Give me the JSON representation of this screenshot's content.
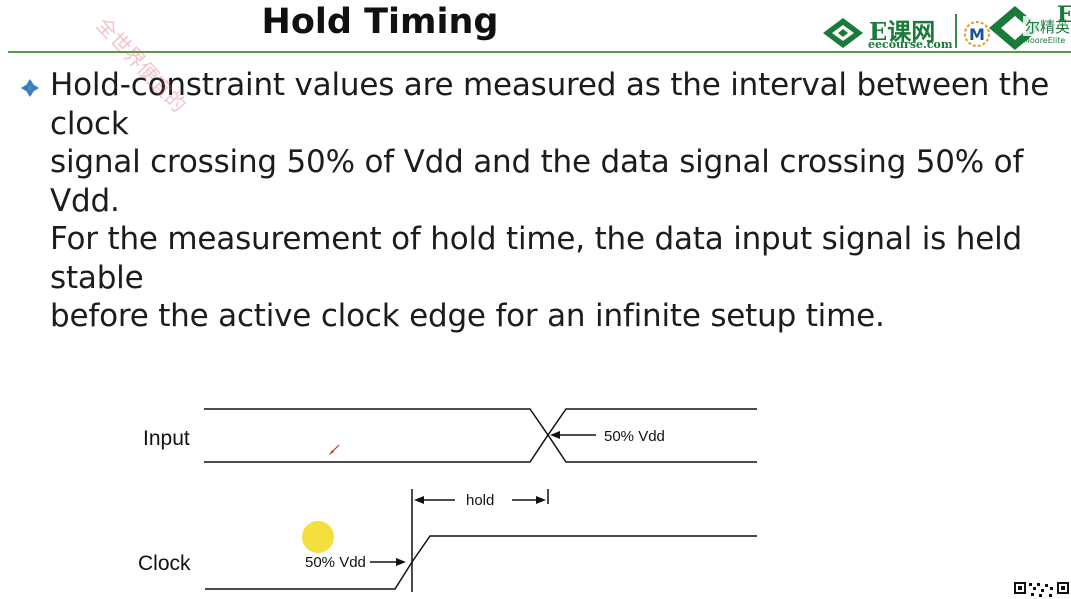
{
  "slide": {
    "title": "Hold Timing",
    "bullet_text": "Hold-constraint values are measured as the interval between the clock\nsignal crossing 50% of Vdd and the data signal crossing 50% of Vdd.\nFor the measurement of hold time, the data input signal is held stable\nbefore the active clock edge for an infinite setup time."
  },
  "logos": {
    "ecourse_name": "E课网",
    "ecourse_url": "eecourse.com",
    "moore_name": "MooreElite"
  },
  "watermark": "全世界便宜的",
  "diagram": {
    "input_label": "Input",
    "clock_label": "Clock",
    "input_threshold_label": "50% Vdd",
    "clock_threshold_label": "50% Vdd",
    "hold_label": "hold"
  },
  "colors": {
    "accent_green": "#1a7a3a",
    "rule_green": "#5a9a45",
    "bullet_blue": "#3a7fc0",
    "pointer_dot": "#f3dc2a"
  }
}
